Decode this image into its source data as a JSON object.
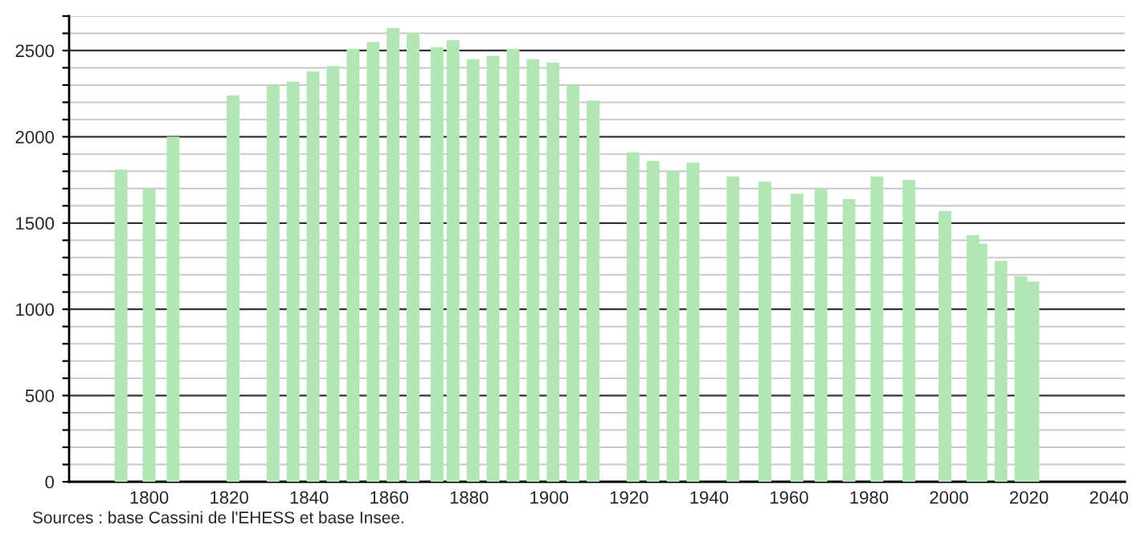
{
  "chart_data": {
    "type": "bar",
    "x": [
      1793,
      1800,
      1806,
      1821,
      1831,
      1836,
      1841,
      1846,
      1851,
      1856,
      1861,
      1866,
      1872,
      1876,
      1881,
      1886,
      1891,
      1896,
      1901,
      1906,
      1911,
      1921,
      1926,
      1931,
      1936,
      1946,
      1954,
      1962,
      1968,
      1975,
      1982,
      1990,
      1999,
      2006,
      2008,
      2013,
      2018,
      2021
    ],
    "values": [
      1810,
      1700,
      2000,
      2240,
      2300,
      2320,
      2380,
      2410,
      2510,
      2550,
      2630,
      2600,
      2520,
      2560,
      2450,
      2470,
      2510,
      2450,
      2430,
      2300,
      2210,
      1910,
      1860,
      1800,
      1850,
      1770,
      1740,
      1670,
      1700,
      1640,
      1770,
      1750,
      1570,
      1430,
      1380,
      1280,
      1190,
      1160
    ],
    "color": "#b3e6b5",
    "xlim": [
      1780,
      2044
    ],
    "xticks": [
      1800,
      1820,
      1840,
      1860,
      1880,
      1900,
      1920,
      1940,
      1960,
      1980,
      2000,
      2020,
      2040
    ],
    "ylim": [
      0,
      2700
    ],
    "yticks": [
      0,
      {
        "value": 100,
        "label": null
      },
      {
        "value": 200,
        "label": null
      },
      {
        "value": 300,
        "label": null
      },
      {
        "value": 400,
        "label": null
      },
      500,
      {
        "value": 600,
        "label": null
      },
      {
        "value": 700,
        "label": null
      },
      {
        "value": 800,
        "label": null
      },
      {
        "value": 900,
        "label": null
      },
      1000,
      {
        "value": 1100,
        "label": null
      },
      {
        "value": 1200,
        "label": null
      },
      {
        "value": 1300,
        "label": null
      },
      {
        "value": 1400,
        "label": null
      },
      1500,
      {
        "value": 1600,
        "label": null
      },
      {
        "value": 1700,
        "label": null
      },
      {
        "value": 1800,
        "label": null
      },
      {
        "value": 1900,
        "label": null
      },
      2000,
      {
        "value": 2100,
        "label": null
      },
      {
        "value": 2200,
        "label": null
      },
      {
        "value": 2300,
        "label": null
      },
      {
        "value": 2400,
        "label": null
      },
      2500,
      {
        "value": 2600,
        "label": null
      },
      {
        "value": 2700,
        "label": null
      }
    ],
    "grid": "y",
    "annotations": [
      "Sources : base Cassini de l'EHESS et base Insee."
    ]
  }
}
